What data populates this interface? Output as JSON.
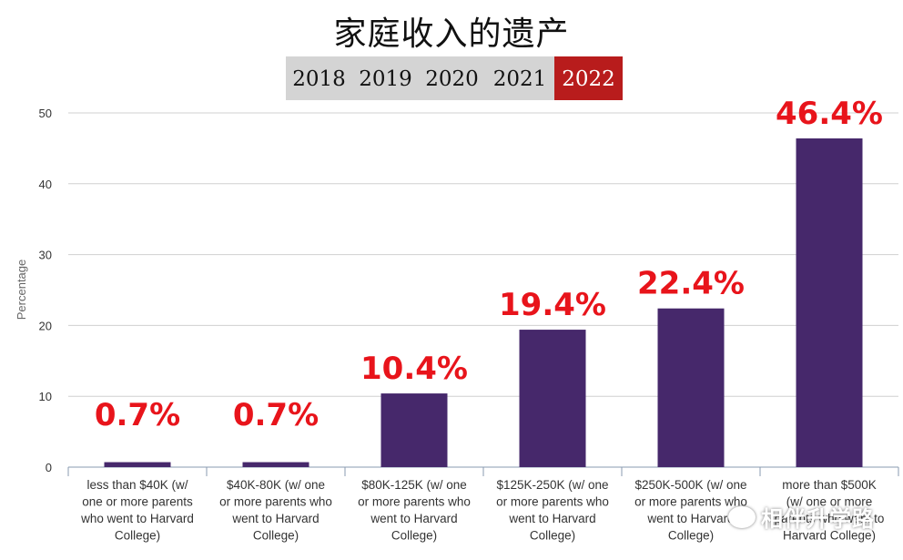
{
  "page": {
    "title": "家庭收入的遗产"
  },
  "year_tabs": {
    "items": [
      "2018",
      "2019",
      "2020",
      "2021",
      "2022"
    ],
    "active": "2022"
  },
  "chart_data": {
    "type": "bar",
    "title": "家庭收入的遗产",
    "xlabel": "",
    "ylabel": "Percentage",
    "ylim": [
      0,
      50
    ],
    "yticks": [
      0,
      10,
      20,
      30,
      40,
      50
    ],
    "grid": true,
    "categories": [
      [
        "less than $40K (w/",
        "one or more parents",
        "who went to Harvard",
        "College)"
      ],
      [
        "$40K-80K (w/ one",
        "or more parents who",
        "went to Harvard",
        "College)"
      ],
      [
        "$80K-125K (w/ one",
        "or more parents who",
        "went to Harvard",
        "College)"
      ],
      [
        "$125K-250K (w/ one",
        "or more parents who",
        "went to Harvard",
        "College)"
      ],
      [
        "$250K-500K (w/ one",
        "or more parents who",
        "went to Harvard",
        "College)"
      ],
      [
        "more than $500K",
        "(w/ one or more",
        "parents who went to",
        "Harvard College)"
      ]
    ],
    "values": [
      0.7,
      0.7,
      10.4,
      19.4,
      22.4,
      46.4
    ],
    "data_labels": [
      "0.7%",
      "0.7%",
      "10.4%",
      "19.4%",
      "22.4%",
      "46.4%"
    ],
    "colors": {
      "bar": "#46286b",
      "label": "#e8141b",
      "grid": "#d0d0d0",
      "axis": "#8a9bb0",
      "tick_text": "#333333"
    }
  },
  "watermark": {
    "text": "相伴升学路",
    "icon": "wechat-icon"
  }
}
